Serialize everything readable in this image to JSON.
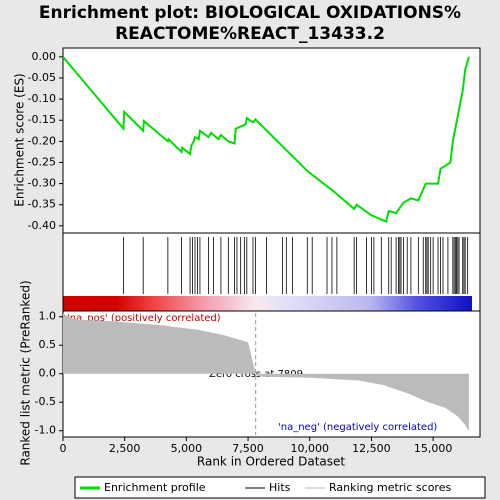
{
  "chart_data": [
    {
      "type": "line",
      "title": [
        "Enrichment plot: BIOLOGICAL OXIDATIONS%",
        "REACTOME%REACT_13433.2"
      ],
      "y_label": "Enrichment score (ES)",
      "xlim": [
        0,
        16900
      ],
      "ylim": [
        -0.417,
        0.021
      ],
      "yticks": [
        {
          "value": 0,
          "label": "0.00"
        },
        {
          "value": -0.05,
          "label": "-0.05"
        },
        {
          "value": -0.1,
          "label": "-0.10"
        },
        {
          "value": -0.15,
          "label": "-0.15"
        },
        {
          "value": -0.2,
          "label": "-0.20"
        },
        {
          "value": -0.25,
          "label": "-0.25"
        },
        {
          "value": -0.3,
          "label": "-0.30"
        },
        {
          "value": -0.35,
          "label": "-0.35"
        },
        {
          "value": -0.4,
          "label": "-0.40"
        }
      ],
      "series": [
        {
          "name": "Enrichment profile",
          "color": "#00dd00",
          "x": [
            0,
            2450,
            2480,
            3250,
            3280,
            4250,
            4280,
            4800,
            4830,
            5150,
            5200,
            5300,
            5350,
            5500,
            5550,
            5900,
            6000,
            6300,
            6400,
            6700,
            6950,
            7000,
            7400,
            7450,
            7700,
            7800,
            9900,
            11000,
            11800,
            11900,
            12500,
            12900,
            13100,
            13200,
            13500,
            13800,
            14100,
            14400,
            14700,
            15200,
            15300,
            15700,
            15800,
            16000,
            16200,
            16300,
            16450
          ],
          "values": [
            0,
            -0.17,
            -0.13,
            -0.175,
            -0.152,
            -0.2,
            -0.195,
            -0.225,
            -0.215,
            -0.23,
            -0.21,
            -0.2,
            -0.19,
            -0.195,
            -0.175,
            -0.19,
            -0.18,
            -0.195,
            -0.185,
            -0.2,
            -0.205,
            -0.17,
            -0.16,
            -0.145,
            -0.155,
            -0.148,
            -0.27,
            -0.32,
            -0.36,
            -0.35,
            -0.375,
            -0.385,
            -0.39,
            -0.365,
            -0.37,
            -0.345,
            -0.335,
            -0.34,
            -0.3,
            -0.3,
            -0.265,
            -0.25,
            -0.2,
            -0.14,
            -0.08,
            -0.03,
            0
          ]
        }
      ],
      "hits": {
        "name": "Hits",
        "color": "#000000",
        "x": [
          2450,
          3250,
          4250,
          4800,
          5150,
          5250,
          5350,
          5450,
          5550,
          5900,
          6100,
          6400,
          6700,
          6950,
          7050,
          7200,
          7350,
          7450,
          7700,
          7800,
          8250,
          8900,
          9050,
          9300,
          9900,
          10100,
          10700,
          10900,
          11100,
          11800,
          11900,
          12300,
          12500,
          12600,
          12900,
          13200,
          13300,
          13500,
          13600,
          13650,
          13700,
          13800,
          13950,
          14100,
          14400,
          14600,
          14700,
          14750,
          14800,
          14900,
          15000,
          15200,
          15300,
          15400,
          15600,
          15800,
          15850,
          15900,
          15950,
          16000,
          16050,
          16200,
          16250,
          16300,
          16400
        ]
      }
    },
    {
      "type": "area",
      "y_label": "Ranked list metric (PreRanked)",
      "x_label": "Rank in Ordered Dataset",
      "xlim": [
        0,
        16900
      ],
      "ylim": [
        -1.11,
        1.1
      ],
      "xticks": [
        0,
        {
          "value": 2500,
          "label": "2,500"
        },
        {
          "value": 5000,
          "label": "5,000"
        },
        {
          "value": 7500,
          "label": "7,500"
        },
        {
          "value": 10000,
          "label": "10,000"
        },
        {
          "value": 12500,
          "label": "12,500"
        },
        {
          "value": 15000,
          "label": "15,000"
        }
      ],
      "yticks": [
        {
          "value": 1,
          "label": "1.0"
        },
        0.5,
        {
          "value": 0,
          "label": "0.0"
        },
        -0.5,
        {
          "value": -1,
          "label": "-1.0"
        }
      ],
      "series": [
        {
          "name": "Ranking metric scores",
          "color": "#bbbbbb",
          "x": [
            0,
            500,
            2000,
            4000,
            5500,
            6500,
            7500,
            7809,
            7810,
            8000,
            10000,
            12000,
            13000,
            14000,
            14800,
            15500,
            16000,
            16300,
            16450
          ],
          "values": [
            1.05,
            0.95,
            0.92,
            0.85,
            0.77,
            0.68,
            0.55,
            0,
            -0.02,
            -0.05,
            -0.07,
            -0.12,
            -0.2,
            -0.35,
            -0.5,
            -0.6,
            -0.75,
            -0.9,
            -1.0
          ]
        }
      ],
      "zero_cross": 7809,
      "annotations": [
        "'na_pos' (positively correlated)",
        "Zero cross at 7809",
        "'na_neg' (negatively correlated)"
      ]
    }
  ]
}
